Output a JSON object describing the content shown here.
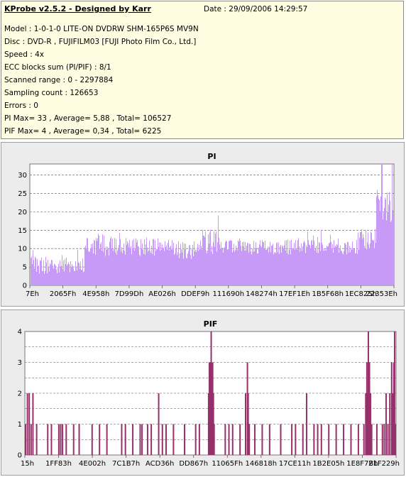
{
  "header": {
    "title": "KProbe v2.5.2 - Designed by Karr",
    "date": "Date : 29/09/2006 14:29:57",
    "lines": [
      "Model : 1-0-1-0 LITE-ON DVDRW SHM-165P6S MV9N",
      "Disc : DVD-R , FUJIFILM03 [FUJI Photo Film Co., Ltd.]",
      "Speed : 4x",
      "ECC blocks sum (PI/PIF) : 8/1",
      "Scanned range : 0 - 2297884",
      "Sampling count : 126653",
      "Errors : 0",
      "PI Max= 33 , Average= 5,88 , Total= 106527",
      "PIF Max= 4 , Average= 0,34 , Total= 6225"
    ]
  },
  "colors": {
    "pi_bar": "#c79af8",
    "pif_bar": "#96316a",
    "info_bg": "#fefde2",
    "panel_bg": "#ececec",
    "plot_bg": "#ffffff",
    "grid": "#555555"
  },
  "chart_data": [
    {
      "type": "bar",
      "title": "PI",
      "ylim": [
        0,
        33
      ],
      "yticks": [
        0,
        5,
        10,
        15,
        20,
        25,
        30
      ],
      "xtick_labels": [
        "7Eh",
        "2065Fh",
        "4E958h",
        "7D99Dh",
        "AE026h",
        "DDEF9h",
        "111690h",
        "148274h",
        "17EF1Eh",
        "1B5F68h",
        "1EC825h",
        "22353Eh"
      ],
      "grid": "horizontal dashed",
      "series_profile": [
        {
          "from": 0,
          "to": 0.15,
          "base": 5,
          "spread": 5
        },
        {
          "from": 0.15,
          "to": 0.21,
          "base": 10,
          "spread": 7
        },
        {
          "from": 0.21,
          "to": 0.4,
          "base": 10,
          "spread": 5
        },
        {
          "from": 0.4,
          "to": 0.46,
          "base": 9,
          "spread": 5
        },
        {
          "from": 0.46,
          "to": 0.52,
          "base": 11,
          "spread": 7
        },
        {
          "from": 0.52,
          "to": 0.9,
          "base": 10,
          "spread": 4
        },
        {
          "from": 0.9,
          "to": 0.95,
          "base": 12,
          "spread": 6
        },
        {
          "from": 0.95,
          "to": 1.0,
          "base": 21,
          "spread": 10
        }
      ],
      "peak_value": 33,
      "peak_at": 0.965
    },
    {
      "type": "bar",
      "title": "PIF",
      "ylim": [
        0,
        4
      ],
      "yticks": [
        0,
        0.5,
        1,
        1.5,
        2,
        2.5,
        3,
        3.5,
        4
      ],
      "ytick_labels": [
        "0",
        "",
        "1",
        "",
        "2",
        "",
        "3",
        "",
        "4"
      ],
      "xtick_labels": [
        "15h",
        "1FF83h",
        "4E002h",
        "7C1B7h",
        "ACD36h",
        "DD867h",
        "11065Fh",
        "146818h",
        "17CE11h",
        "1B2E05h",
        "1E8F7Bh",
        "21F229h"
      ],
      "grid": "horizontal dashed",
      "bars": [
        [
          0.0,
          1
        ],
        [
          0.005,
          2
        ],
        [
          0.01,
          2
        ],
        [
          0.015,
          1
        ],
        [
          0.02,
          2
        ],
        [
          0.03,
          1
        ],
        [
          0.06,
          1
        ],
        [
          0.07,
          1
        ],
        [
          0.09,
          1
        ],
        [
          0.095,
          1
        ],
        [
          0.1,
          1
        ],
        [
          0.11,
          1
        ],
        [
          0.13,
          1
        ],
        [
          0.145,
          1
        ],
        [
          0.18,
          1
        ],
        [
          0.2,
          1
        ],
        [
          0.22,
          1
        ],
        [
          0.26,
          1
        ],
        [
          0.27,
          1
        ],
        [
          0.29,
          1
        ],
        [
          0.31,
          1
        ],
        [
          0.315,
          1
        ],
        [
          0.33,
          1
        ],
        [
          0.34,
          1
        ],
        [
          0.36,
          2
        ],
        [
          0.37,
          1
        ],
        [
          0.38,
          1
        ],
        [
          0.4,
          1
        ],
        [
          0.43,
          1
        ],
        [
          0.46,
          1
        ],
        [
          0.47,
          1
        ],
        [
          0.495,
          2
        ],
        [
          0.497,
          3
        ],
        [
          0.5,
          3
        ],
        [
          0.502,
          4
        ],
        [
          0.504,
          3
        ],
        [
          0.506,
          3
        ],
        [
          0.508,
          2
        ],
        [
          0.51,
          1
        ],
        [
          0.54,
          1
        ],
        [
          0.55,
          1
        ],
        [
          0.56,
          1
        ],
        [
          0.58,
          1
        ],
        [
          0.595,
          2
        ],
        [
          0.6,
          3
        ],
        [
          0.602,
          2
        ],
        [
          0.605,
          1
        ],
        [
          0.62,
          1
        ],
        [
          0.64,
          1
        ],
        [
          0.66,
          1
        ],
        [
          0.69,
          1
        ],
        [
          0.72,
          1
        ],
        [
          0.73,
          1
        ],
        [
          0.75,
          1
        ],
        [
          0.76,
          2
        ],
        [
          0.78,
          1
        ],
        [
          0.79,
          1
        ],
        [
          0.8,
          1
        ],
        [
          0.82,
          1
        ],
        [
          0.84,
          1
        ],
        [
          0.86,
          1
        ],
        [
          0.88,
          1
        ],
        [
          0.9,
          1
        ],
        [
          0.915,
          1
        ],
        [
          0.92,
          2
        ],
        [
          0.923,
          3
        ],
        [
          0.925,
          2
        ],
        [
          0.927,
          4
        ],
        [
          0.93,
          3
        ],
        [
          0.933,
          2
        ],
        [
          0.936,
          1
        ],
        [
          0.95,
          1
        ],
        [
          0.965,
          1
        ],
        [
          0.97,
          1
        ],
        [
          0.975,
          2
        ],
        [
          0.98,
          1
        ],
        [
          0.985,
          2
        ],
        [
          0.99,
          3
        ],
        [
          0.993,
          2
        ],
        [
          0.996,
          3
        ],
        [
          0.998,
          4
        ],
        [
          1.0,
          1
        ]
      ]
    }
  ]
}
